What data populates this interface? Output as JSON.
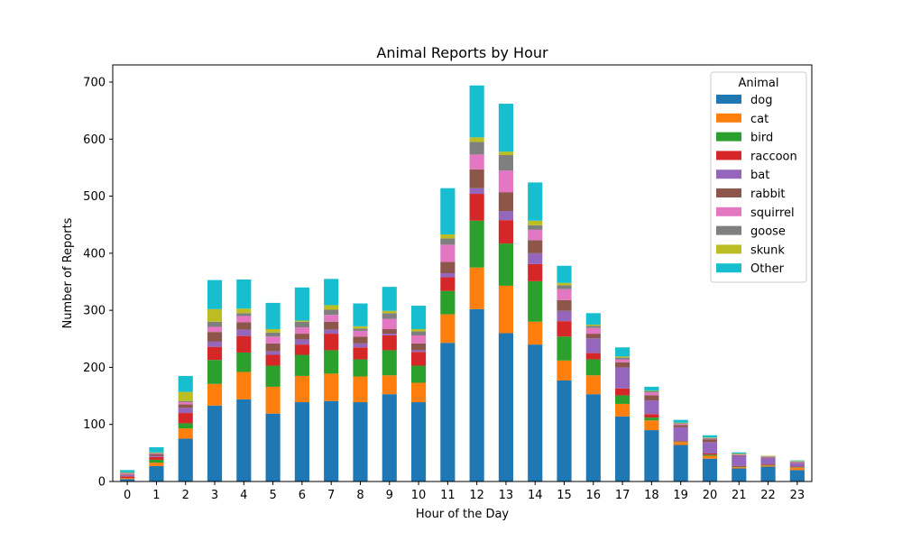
{
  "chart_data": {
    "type": "bar",
    "stacked": true,
    "title": "Animal Reports by Hour",
    "xlabel": "Hour of the Day",
    "ylabel": "Number of Reports",
    "ylim": [
      0,
      730
    ],
    "yticks": [
      0,
      100,
      200,
      300,
      400,
      500,
      600,
      700
    ],
    "grid": false,
    "legend": {
      "title": "Animal",
      "placement": "top-right"
    },
    "categories": [
      "0",
      "1",
      "2",
      "3",
      "4",
      "5",
      "6",
      "7",
      "8",
      "9",
      "10",
      "11",
      "12",
      "13",
      "14",
      "15",
      "16",
      "17",
      "18",
      "19",
      "20",
      "21",
      "22",
      "23"
    ],
    "series": [
      {
        "name": "dog",
        "color": "#1f77b4",
        "values": [
          4,
          27,
          75,
          133,
          144,
          119,
          139,
          141,
          139,
          153,
          139,
          243,
          302,
          260,
          240,
          177,
          153,
          114,
          90,
          64,
          40,
          23,
          26,
          20
        ]
      },
      {
        "name": "cat",
        "color": "#ff7f0e",
        "values": [
          2,
          6,
          18,
          38,
          48,
          47,
          46,
          48,
          45,
          33,
          34,
          50,
          73,
          83,
          40,
          35,
          33,
          22,
          17,
          5,
          5,
          2,
          2,
          4
        ]
      },
      {
        "name": "bird",
        "color": "#2ca02c",
        "values": [
          0,
          5,
          9,
          42,
          34,
          37,
          37,
          41,
          30,
          44,
          30,
          41,
          82,
          74,
          71,
          42,
          28,
          15,
          5,
          1,
          2,
          1,
          1,
          1
        ]
      },
      {
        "name": "raccoon",
        "color": "#d62728",
        "values": [
          3,
          5,
          18,
          23,
          29,
          19,
          18,
          29,
          21,
          26,
          24,
          24,
          47,
          41,
          30,
          27,
          11,
          12,
          6,
          1,
          2,
          1,
          1,
          1
        ]
      },
      {
        "name": "bat",
        "color": "#9467bd",
        "values": [
          2,
          2,
          9,
          9,
          11,
          6,
          9,
          7,
          7,
          3,
          3,
          7,
          10,
          16,
          19,
          18,
          26,
          37,
          24,
          24,
          20,
          18,
          11,
          6
        ]
      },
      {
        "name": "rabbit",
        "color": "#8c564b",
        "values": [
          1,
          3,
          6,
          17,
          13,
          14,
          10,
          14,
          12,
          8,
          12,
          20,
          33,
          33,
          23,
          19,
          8,
          9,
          9,
          4,
          5,
          1,
          1,
          1
        ]
      },
      {
        "name": "squirrel",
        "color": "#e377c2",
        "values": [
          2,
          1,
          4,
          9,
          11,
          12,
          11,
          12,
          10,
          18,
          14,
          30,
          26,
          38,
          18,
          19,
          10,
          5,
          5,
          2,
          1,
          1,
          1,
          1
        ]
      },
      {
        "name": "goose",
        "color": "#7f7f7f",
        "values": [
          1,
          1,
          2,
          9,
          5,
          7,
          10,
          9,
          4,
          10,
          7,
          11,
          22,
          27,
          8,
          7,
          4,
          3,
          2,
          1,
          1,
          1,
          1,
          1
        ]
      },
      {
        "name": "skunk",
        "color": "#bcbd22",
        "values": [
          1,
          1,
          16,
          22,
          8,
          6,
          2,
          8,
          4,
          4,
          4,
          7,
          8,
          6,
          8,
          4,
          2,
          2,
          1,
          1,
          1,
          1,
          1,
          1
        ]
      },
      {
        "name": "Other",
        "color": "#17becf",
        "values": [
          4,
          9,
          28,
          51,
          51,
          46,
          58,
          46,
          40,
          42,
          41,
          81,
          91,
          84,
          67,
          30,
          20,
          16,
          7,
          5,
          4,
          2,
          0,
          1
        ]
      }
    ]
  }
}
